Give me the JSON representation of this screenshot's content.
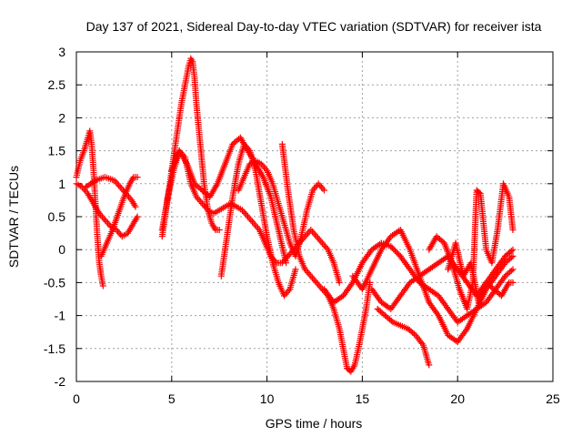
{
  "chart_data": {
    "type": "scatter",
    "title": "Day 137 of 2021, Sidereal Day-to-day VTEC variation (SDTVAR) for receiver ista",
    "xlabel": "GPS time / hours",
    "ylabel": "SDTVAR / TECUs",
    "xlim": [
      0,
      25
    ],
    "ylim": [
      -2,
      3
    ],
    "xticks": [
      "0",
      "5",
      "10",
      "15",
      "20",
      "25"
    ],
    "yticks": [
      "-2",
      "-1.5",
      "-1",
      "-0.5",
      "0",
      "0.5",
      "1",
      "1.5",
      "2",
      "2.5",
      "3"
    ],
    "grid": true,
    "marker": "plus",
    "color": "#ff0000",
    "series": [
      {
        "x": [
          0.0,
          0.2,
          0.4,
          0.6,
          0.7,
          0.8,
          0.9,
          1.0,
          1.1,
          1.2,
          1.3,
          1.4
        ],
        "y": [
          1.1,
          1.35,
          1.5,
          1.7,
          1.8,
          1.6,
          1.2,
          0.7,
          0.2,
          -0.2,
          -0.4,
          -0.55
        ]
      },
      {
        "x": [
          0.0,
          0.3,
          0.6,
          0.9,
          1.2,
          1.5,
          1.8,
          2.1,
          2.4,
          2.7,
          3.0,
          3.2
        ],
        "y": [
          1.0,
          0.95,
          0.85,
          0.7,
          0.55,
          0.45,
          0.35,
          0.3,
          0.2,
          0.25,
          0.4,
          0.5
        ]
      },
      {
        "x": [
          0.5,
          1.0,
          1.5,
          2.0,
          2.3,
          2.6,
          2.9,
          3.1
        ],
        "y": [
          0.95,
          1.05,
          1.1,
          1.05,
          0.95,
          0.85,
          0.75,
          0.65
        ]
      },
      {
        "x": [
          1.3,
          1.6,
          1.9,
          2.2,
          2.5,
          2.8,
          3.0,
          3.2
        ],
        "y": [
          -0.1,
          0.1,
          0.3,
          0.55,
          0.8,
          1.0,
          1.1,
          1.1
        ]
      },
      {
        "x": [
          4.5,
          4.7,
          4.9,
          5.1,
          5.3,
          5.5,
          5.7,
          5.9,
          6.0,
          6.1,
          6.2,
          6.3,
          6.5,
          6.7,
          6.9,
          7.1,
          7.3,
          7.5
        ],
        "y": [
          0.2,
          0.6,
          1.0,
          1.4,
          1.8,
          2.2,
          2.5,
          2.8,
          2.9,
          2.85,
          2.6,
          2.2,
          1.6,
          1.0,
          0.6,
          0.4,
          0.3,
          0.3
        ]
      },
      {
        "x": [
          4.5,
          4.8,
          5.1,
          5.4,
          5.7,
          6.0,
          6.3,
          6.6,
          6.9,
          7.2,
          7.5,
          7.8,
          8.1,
          8.4,
          8.7,
          9.0,
          9.3,
          9.6,
          9.9,
          10.2,
          10.5,
          10.8,
          11.1,
          11.4,
          11.7,
          12.0,
          12.3,
          12.6,
          12.9,
          13.2,
          13.5,
          13.8
        ],
        "y": [
          0.3,
          0.8,
          1.2,
          1.5,
          1.4,
          1.0,
          0.8,
          0.7,
          0.6,
          0.55,
          0.6,
          0.65,
          0.7,
          0.65,
          0.6,
          0.5,
          0.4,
          0.3,
          0.1,
          -0.1,
          -0.2,
          -0.2,
          -0.1,
          0.0,
          0.1,
          0.2,
          0.3,
          0.2,
          0.1,
          0.0,
          -0.2,
          -0.5
        ]
      },
      {
        "x": [
          5.0,
          5.4,
          5.8,
          6.2,
          6.6,
          7.0,
          7.4,
          7.8,
          8.2,
          8.6,
          9.0,
          9.4,
          9.8,
          10.2,
          10.6,
          11.0
        ],
        "y": [
          1.2,
          1.5,
          1.3,
          1.0,
          0.9,
          0.8,
          1.0,
          1.3,
          1.6,
          1.7,
          1.5,
          1.3,
          1.1,
          0.8,
          0.3,
          -0.2
        ]
      },
      {
        "x": [
          7.6,
          7.9,
          8.2,
          8.5,
          8.8,
          9.1,
          9.4,
          9.7,
          10.0,
          10.3,
          10.6,
          10.9,
          11.2,
          11.5
        ],
        "y": [
          -0.4,
          0.2,
          0.8,
          1.3,
          1.6,
          1.5,
          1.2,
          0.7,
          0.2,
          -0.2,
          -0.5,
          -0.7,
          -0.6,
          -0.3
        ]
      },
      {
        "x": [
          8.5,
          8.8,
          9.1,
          9.4,
          9.7,
          10.0,
          10.3,
          10.6,
          10.9,
          11.2,
          11.5,
          11.8,
          12.1,
          12.4,
          12.7,
          13.0
        ],
        "y": [
          0.9,
          1.1,
          1.3,
          1.35,
          1.3,
          1.2,
          1.0,
          0.7,
          0.4,
          0.1,
          -0.1,
          0.2,
          0.6,
          0.9,
          1.0,
          0.9
        ]
      },
      {
        "x": [
          10.8,
          11.1,
          11.4,
          11.7,
          12.0,
          12.3,
          12.6,
          12.9,
          13.2,
          13.5,
          13.8,
          14.0,
          14.2,
          14.4,
          14.6,
          14.8,
          15.0,
          15.2,
          15.4
        ],
        "y": [
          1.6,
          0.9,
          0.3,
          -0.1,
          -0.3,
          -0.4,
          -0.5,
          -0.6,
          -0.7,
          -0.9,
          -1.2,
          -1.5,
          -1.8,
          -1.85,
          -1.75,
          -1.5,
          -1.2,
          -0.9,
          -0.5
        ]
      },
      {
        "x": [
          13.0,
          13.5,
          14.0,
          14.5,
          15.0,
          15.5,
          16.0,
          16.5,
          17.0,
          17.5,
          18.0,
          18.5,
          19.0,
          19.5,
          20.0,
          20.5,
          21.0,
          21.5,
          22.0,
          22.5,
          22.9
        ],
        "y": [
          -0.6,
          -0.8,
          -0.7,
          -0.5,
          -0.2,
          0.0,
          0.1,
          0.05,
          -0.1,
          -0.3,
          -0.5,
          -0.6,
          -0.7,
          -0.9,
          -1.1,
          -1.0,
          -0.9,
          -0.8,
          -0.6,
          -0.4,
          -0.3
        ]
      },
      {
        "x": [
          14.5,
          15.0,
          15.5,
          16.0,
          16.5,
          17.0,
          17.5,
          18.0,
          18.5,
          19.0,
          19.5,
          20.0,
          20.5,
          21.0,
          21.5,
          22.0,
          22.5,
          22.9
        ],
        "y": [
          -0.4,
          -0.6,
          -0.3,
          0.0,
          0.2,
          0.3,
          0.0,
          -0.4,
          -0.8,
          -1.0,
          -1.3,
          -1.4,
          -1.2,
          -0.9,
          -0.6,
          -0.4,
          -0.2,
          -0.1
        ]
      },
      {
        "x": [
          15.5,
          16.0,
          16.5,
          17.0,
          17.5,
          18.0,
          18.5,
          19.0,
          19.5,
          20.0,
          20.5,
          21.0,
          21.5,
          22.0,
          22.5,
          22.9
        ],
        "y": [
          -0.6,
          -0.8,
          -0.9,
          -0.7,
          -0.5,
          -0.4,
          -0.3,
          -0.2,
          -0.1,
          -0.3,
          -0.5,
          -0.7,
          -0.5,
          -0.3,
          -0.1,
          0.0
        ]
      },
      {
        "x": [
          15.8,
          16.2,
          16.6,
          17.0,
          17.4,
          17.8,
          18.2,
          18.5
        ],
        "y": [
          -0.9,
          -1.0,
          -1.1,
          -1.15,
          -1.2,
          -1.3,
          -1.45,
          -1.75
        ]
      },
      {
        "x": [
          18.5,
          18.9,
          19.3,
          19.7,
          20.1,
          20.5,
          20.8,
          21.0,
          21.2,
          21.5,
          21.8,
          22.1,
          22.4,
          22.7,
          22.9
        ],
        "y": [
          0.0,
          0.2,
          0.1,
          -0.2,
          -0.6,
          -0.9,
          -0.5,
          0.9,
          0.85,
          0.0,
          -0.2,
          0.3,
          1.0,
          0.8,
          0.3
        ]
      },
      {
        "x": [
          19.5,
          19.9,
          20.3,
          20.7,
          21.1,
          21.5,
          21.9,
          22.3,
          22.7,
          22.9
        ],
        "y": [
          -0.3,
          0.1,
          -0.4,
          -0.2,
          -0.8,
          -0.5,
          -0.6,
          -0.7,
          -0.5,
          -0.5
        ]
      }
    ]
  }
}
